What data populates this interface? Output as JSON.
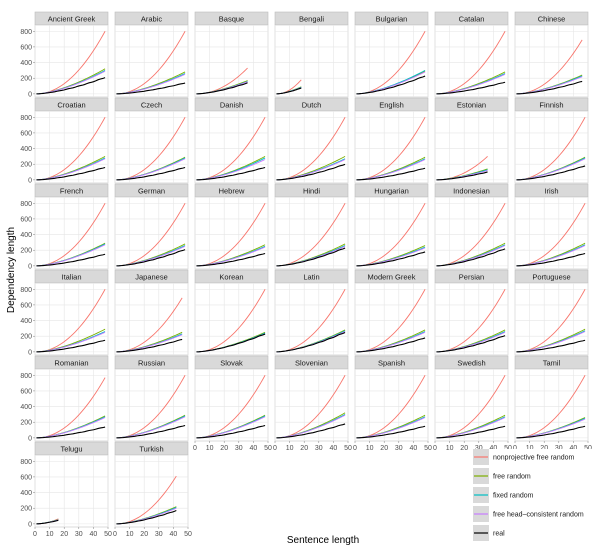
{
  "chart_data": {
    "type": "line",
    "xlabel": "Sentence length",
    "ylabel": "Dependency length",
    "xticks": [
      0,
      10,
      20,
      30,
      40,
      50
    ],
    "yticks": [
      0,
      200,
      400,
      600,
      800
    ],
    "xlim": [
      0,
      50
    ],
    "ylim": [
      -40,
      880
    ],
    "grid": true,
    "legend_position": "bottom-right",
    "legend": [
      {
        "name": "nonprojective free random",
        "color": "#F8766D"
      },
      {
        "name": "free random",
        "color": "#7CAE00"
      },
      {
        "name": "fixed random",
        "color": "#00BFC4"
      },
      {
        "name": "free head–consistent random",
        "color": "#C77CFF"
      },
      {
        "name": "real",
        "color": "#000000"
      }
    ],
    "panels": [
      {
        "name": "Ancient Greek",
        "xmax": 48,
        "rand": 800,
        "free": 320,
        "fixed": 300,
        "head": 290,
        "real": 210
      },
      {
        "name": "Arabic",
        "xmax": 48,
        "rand": 800,
        "free": 280,
        "fixed": 260,
        "head": 250,
        "real": 140
      },
      {
        "name": "Basque",
        "xmax": 36,
        "rand": 330,
        "free": 170,
        "fixed": 160,
        "head": 155,
        "real": 140
      },
      {
        "name": "Bengali",
        "xmax": 18,
        "rand": 180,
        "free": 90,
        "fixed": 85,
        "head": 80,
        "real": 75
      },
      {
        "name": "Bulgarian",
        "xmax": 48,
        "rand": 800,
        "free": 290,
        "fixed": 300,
        "head": 280,
        "real": 230
      },
      {
        "name": "Catalan",
        "xmax": 48,
        "rand": 800,
        "free": 280,
        "fixed": 260,
        "head": 250,
        "real": 150
      },
      {
        "name": "Chinese",
        "xmax": 46,
        "rand": 690,
        "free": 240,
        "fixed": 230,
        "head": 220,
        "real": 160
      },
      {
        "name": "Croatian",
        "xmax": 48,
        "rand": 800,
        "free": 300,
        "fixed": 280,
        "head": 270,
        "real": 160
      },
      {
        "name": "Czech",
        "xmax": 48,
        "rand": 800,
        "free": 290,
        "fixed": 280,
        "head": 270,
        "real": 160
      },
      {
        "name": "Danish",
        "xmax": 48,
        "rand": 800,
        "free": 300,
        "fixed": 280,
        "head": 260,
        "real": 160
      },
      {
        "name": "Dutch",
        "xmax": 48,
        "rand": 800,
        "free": 300,
        "fixed": 270,
        "head": 260,
        "real": 200
      },
      {
        "name": "English",
        "xmax": 48,
        "rand": 800,
        "free": 290,
        "fixed": 270,
        "head": 260,
        "real": 150
      },
      {
        "name": "Estonian",
        "xmax": 36,
        "rand": 300,
        "free": 140,
        "fixed": 130,
        "head": 120,
        "real": 100
      },
      {
        "name": "Finnish",
        "xmax": 48,
        "rand": 800,
        "free": 290,
        "fixed": 280,
        "head": 270,
        "real": 180
      },
      {
        "name": "French",
        "xmax": 48,
        "rand": 800,
        "free": 290,
        "fixed": 280,
        "head": 270,
        "real": 150
      },
      {
        "name": "German",
        "xmax": 48,
        "rand": 800,
        "free": 280,
        "fixed": 260,
        "head": 250,
        "real": 210
      },
      {
        "name": "Hebrew",
        "xmax": 48,
        "rand": 800,
        "free": 270,
        "fixed": 250,
        "head": 240,
        "real": 160
      },
      {
        "name": "Hindi",
        "xmax": 48,
        "rand": 800,
        "free": 280,
        "fixed": 260,
        "head": 250,
        "real": 230
      },
      {
        "name": "Hungarian",
        "xmax": 48,
        "rand": 800,
        "free": 260,
        "fixed": 240,
        "head": 230,
        "real": 180
      },
      {
        "name": "Indonesian",
        "xmax": 48,
        "rand": 800,
        "free": 290,
        "fixed": 270,
        "head": 260,
        "real": 220
      },
      {
        "name": "Irish",
        "xmax": 48,
        "rand": 800,
        "free": 290,
        "fixed": 270,
        "head": 260,
        "real": 160
      },
      {
        "name": "Italian",
        "xmax": 48,
        "rand": 800,
        "free": 290,
        "fixed": 260,
        "head": 250,
        "real": 150
      },
      {
        "name": "Japanese",
        "xmax": 46,
        "rand": 690,
        "free": 250,
        "fixed": 230,
        "head": 220,
        "real": 160
      },
      {
        "name": "Korean",
        "xmax": 48,
        "rand": 800,
        "free": 250,
        "fixed": 240,
        "head": 230,
        "real": 230
      },
      {
        "name": "Latin",
        "xmax": 48,
        "rand": 800,
        "free": 280,
        "fixed": 270,
        "head": 260,
        "real": 250
      },
      {
        "name": "Modern Greek",
        "xmax": 48,
        "rand": 800,
        "free": 280,
        "fixed": 260,
        "head": 250,
        "real": 180
      },
      {
        "name": "Persian",
        "xmax": 48,
        "rand": 800,
        "free": 280,
        "fixed": 260,
        "head": 250,
        "real": 210
      },
      {
        "name": "Portuguese",
        "xmax": 48,
        "rand": 800,
        "free": 290,
        "fixed": 270,
        "head": 260,
        "real": 150
      },
      {
        "name": "Romanian",
        "xmax": 48,
        "rand": 770,
        "free": 280,
        "fixed": 270,
        "head": 260,
        "real": 140
      },
      {
        "name": "Russian",
        "xmax": 48,
        "rand": 800,
        "free": 290,
        "fixed": 280,
        "head": 270,
        "real": 160
      },
      {
        "name": "Slovak",
        "xmax": 48,
        "rand": 800,
        "free": 290,
        "fixed": 280,
        "head": 270,
        "real": 160
      },
      {
        "name": "Slovenian",
        "xmax": 48,
        "rand": 800,
        "free": 320,
        "fixed": 300,
        "head": 290,
        "real": 180
      },
      {
        "name": "Spanish",
        "xmax": 48,
        "rand": 800,
        "free": 290,
        "fixed": 270,
        "head": 260,
        "real": 150
      },
      {
        "name": "Swedish",
        "xmax": 48,
        "rand": 800,
        "free": 290,
        "fixed": 270,
        "head": 260,
        "real": 150
      },
      {
        "name": "Tamil",
        "xmax": 48,
        "rand": 800,
        "free": 260,
        "fixed": 250,
        "head": 240,
        "real": 150
      },
      {
        "name": "Telugu",
        "xmax": 16,
        "rand": 65,
        "free": 55,
        "fixed": 52,
        "head": 50,
        "real": 45
      },
      {
        "name": "Turkish",
        "xmax": 42,
        "rand": 610,
        "free": 220,
        "fixed": 210,
        "head": 200,
        "real": 170
      }
    ]
  }
}
